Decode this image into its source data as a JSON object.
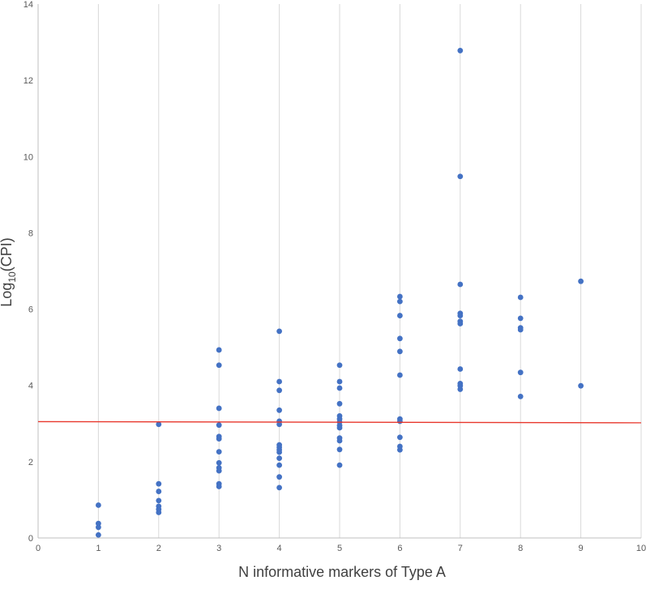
{
  "chart_data": {
    "type": "scatter",
    "xlabel": "N informative markers of Type A",
    "ylabel": {
      "prefix": "Log",
      "subscript": "10",
      "suffix": "(CPI)"
    },
    "xlim": [
      0,
      10
    ],
    "ylim": [
      0,
      14
    ],
    "x_ticks": [
      "0",
      "1",
      "2",
      "3",
      "4",
      "5",
      "6",
      "7",
      "8",
      "9",
      "10"
    ],
    "y_ticks": [
      "0",
      "2",
      "4",
      "6",
      "8",
      "10",
      "12",
      "14"
    ],
    "grid": "vertical",
    "marker_color": "#4472c4",
    "series": [
      {
        "points": [
          [
            1,
            0.86
          ],
          [
            1,
            0.38
          ],
          [
            1,
            0.28
          ],
          [
            1,
            0.08
          ],
          [
            2,
            2.98
          ],
          [
            2,
            1.42
          ],
          [
            2,
            1.22
          ],
          [
            2,
            0.98
          ],
          [
            2,
            0.83
          ],
          [
            2,
            0.75
          ],
          [
            2,
            0.67
          ],
          [
            3,
            4.93
          ],
          [
            3,
            4.53
          ],
          [
            3,
            3.4
          ],
          [
            3,
            2.96
          ],
          [
            3,
            2.66
          ],
          [
            3,
            2.6
          ],
          [
            3,
            2.26
          ],
          [
            3,
            1.97
          ],
          [
            3,
            1.84
          ],
          [
            3,
            1.76
          ],
          [
            3,
            1.42
          ],
          [
            3,
            1.35
          ],
          [
            4,
            5.42
          ],
          [
            4,
            4.1
          ],
          [
            4,
            3.87
          ],
          [
            4,
            3.35
          ],
          [
            4,
            3.06
          ],
          [
            4,
            2.98
          ],
          [
            4,
            2.44
          ],
          [
            4,
            2.38
          ],
          [
            4,
            2.31
          ],
          [
            4,
            2.25
          ],
          [
            4,
            2.09
          ],
          [
            4,
            1.91
          ],
          [
            4,
            1.6
          ],
          [
            4,
            1.32
          ],
          [
            5,
            4.53
          ],
          [
            5,
            4.1
          ],
          [
            5,
            3.93
          ],
          [
            5,
            3.52
          ],
          [
            5,
            3.2
          ],
          [
            5,
            3.12
          ],
          [
            5,
            3.04
          ],
          [
            5,
            2.95
          ],
          [
            5,
            2.89
          ],
          [
            5,
            2.62
          ],
          [
            5,
            2.55
          ],
          [
            5,
            2.32
          ],
          [
            5,
            1.91
          ],
          [
            6,
            6.33
          ],
          [
            6,
            6.2
          ],
          [
            6,
            5.83
          ],
          [
            6,
            5.23
          ],
          [
            6,
            4.89
          ],
          [
            6,
            4.27
          ],
          [
            6,
            3.12
          ],
          [
            6,
            3.06
          ],
          [
            6,
            2.64
          ],
          [
            6,
            2.4
          ],
          [
            6,
            2.31
          ],
          [
            7,
            12.78
          ],
          [
            7,
            9.48
          ],
          [
            7,
            6.65
          ],
          [
            7,
            5.89
          ],
          [
            7,
            5.83
          ],
          [
            7,
            5.68
          ],
          [
            7,
            5.62
          ],
          [
            7,
            4.43
          ],
          [
            7,
            4.05
          ],
          [
            7,
            3.99
          ],
          [
            7,
            3.9
          ],
          [
            8,
            6.31
          ],
          [
            8,
            5.76
          ],
          [
            8,
            5.51
          ],
          [
            8,
            5.46
          ],
          [
            8,
            4.34
          ],
          [
            8,
            3.71
          ],
          [
            9,
            6.73
          ],
          [
            9,
            3.99
          ]
        ]
      },
      {
        "type": "line",
        "color": "#e8372c",
        "points": [
          [
            0,
            3.05
          ],
          [
            10,
            3.02
          ]
        ]
      }
    ]
  }
}
